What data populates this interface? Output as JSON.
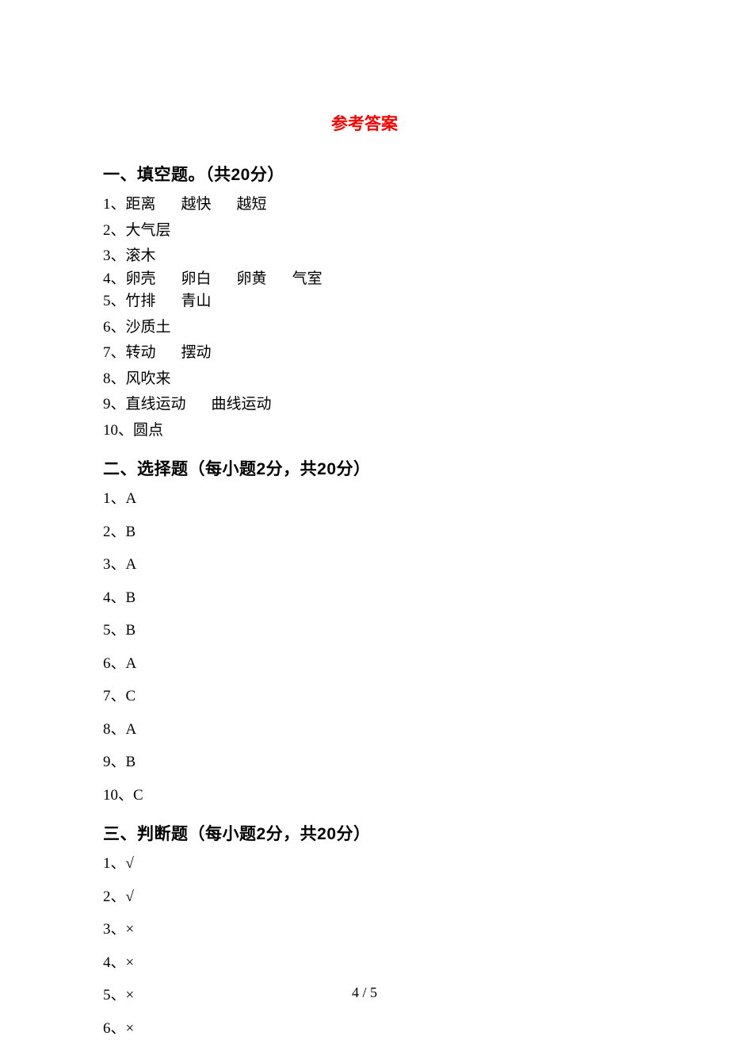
{
  "title": "参考答案",
  "sections": [
    {
      "heading": "一、填空题。（共20分）",
      "items": [
        {
          "num": "1",
          "parts": [
            "距离",
            "越快",
            "越短"
          ]
        },
        {
          "num": "2",
          "parts": [
            "大气层"
          ]
        },
        {
          "num": "3",
          "parts": [
            "滚木"
          ]
        },
        {
          "num": "4",
          "parts": [
            "卵壳",
            "卵白",
            "卵黄",
            "气室"
          ]
        },
        {
          "num": "5",
          "parts": [
            "竹排",
            "青山"
          ]
        },
        {
          "num": "6",
          "parts": [
            "沙质土"
          ]
        },
        {
          "num": "7",
          "parts": [
            "转动",
            "摆动"
          ]
        },
        {
          "num": "8",
          "parts": [
            "风吹来"
          ]
        },
        {
          "num": "9",
          "parts": [
            "直线运动",
            "曲线运动"
          ]
        },
        {
          "num": "10",
          "parts": [
            "圆点"
          ]
        }
      ]
    },
    {
      "heading": "二、选择题（每小题2分，共20分）",
      "items": [
        {
          "num": "1",
          "ans": "A"
        },
        {
          "num": "2",
          "ans": "B"
        },
        {
          "num": "3",
          "ans": "A"
        },
        {
          "num": "4",
          "ans": "B"
        },
        {
          "num": "5",
          "ans": "B"
        },
        {
          "num": "6",
          "ans": "A"
        },
        {
          "num": "7",
          "ans": "C"
        },
        {
          "num": "8",
          "ans": "A"
        },
        {
          "num": "9",
          "ans": "B"
        },
        {
          "num": "10",
          "ans": "C"
        }
      ]
    },
    {
      "heading": "三、判断题（每小题2分，共20分）",
      "items": [
        {
          "num": "1",
          "ans": "√"
        },
        {
          "num": "2",
          "ans": "√"
        },
        {
          "num": "3",
          "ans": "×"
        },
        {
          "num": "4",
          "ans": "×"
        },
        {
          "num": "5",
          "ans": "×"
        },
        {
          "num": "6",
          "ans": "×"
        }
      ]
    }
  ],
  "page_number": "4 / 5",
  "colors": {
    "title_color": "#ff0000",
    "text_color": "#000000",
    "background": "#ffffff"
  },
  "separator": "、"
}
